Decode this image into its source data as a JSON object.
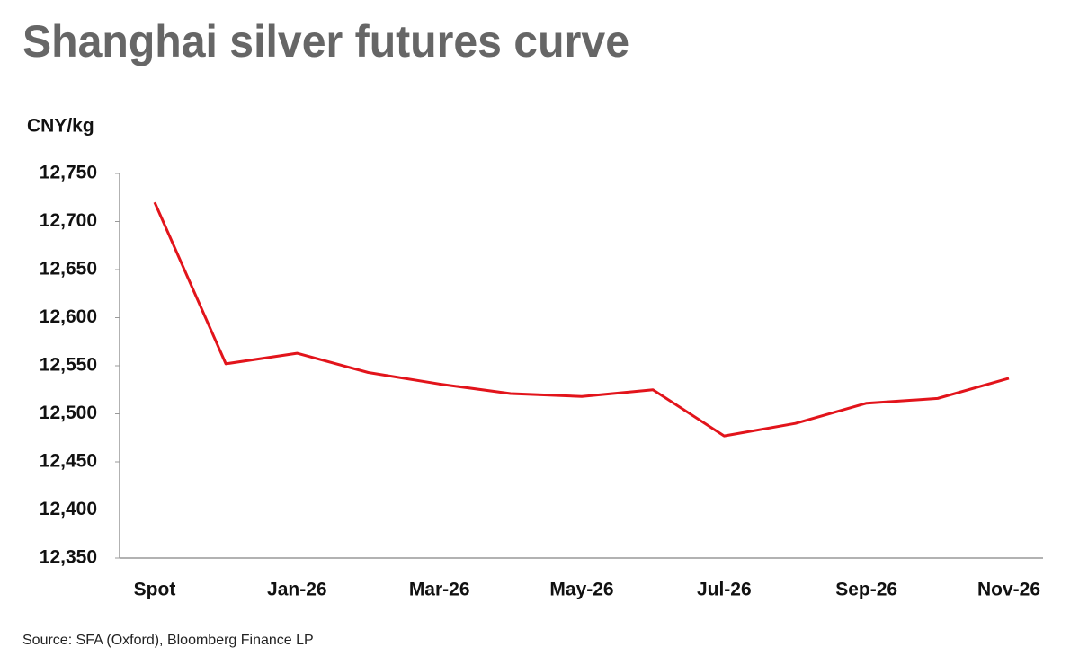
{
  "chart_data": {
    "type": "line",
    "title": "Shanghai silver futures curve",
    "y_label": "CNY/kg",
    "source": "Source: SFA (Oxford), Bloomberg Finance LP",
    "categories": [
      "Spot",
      null,
      "Jan-26",
      null,
      "Mar-26",
      null,
      "May-26",
      null,
      "Jul-26",
      null,
      "Sep-26",
      null,
      "Nov-26"
    ],
    "values": [
      12720,
      12552,
      12563,
      12543,
      12531,
      12521,
      12518,
      12525,
      12477,
      12490,
      12511,
      12516,
      12537
    ],
    "color": "#e2141b",
    "ylim": [
      12350,
      12750
    ],
    "yticks": [
      {
        "value": 12350,
        "label": "12,350"
      },
      {
        "value": 12400,
        "label": "12,400"
      },
      {
        "value": 12450,
        "label": "12,450"
      },
      {
        "value": 12500,
        "label": "12,500"
      },
      {
        "value": 12550,
        "label": "12,550"
      },
      {
        "value": 12600,
        "label": "12,600"
      },
      {
        "value": 12650,
        "label": "12,650"
      },
      {
        "value": 12700,
        "label": "12,700"
      },
      {
        "value": 12750,
        "label": "12,750"
      }
    ],
    "grid": false
  }
}
